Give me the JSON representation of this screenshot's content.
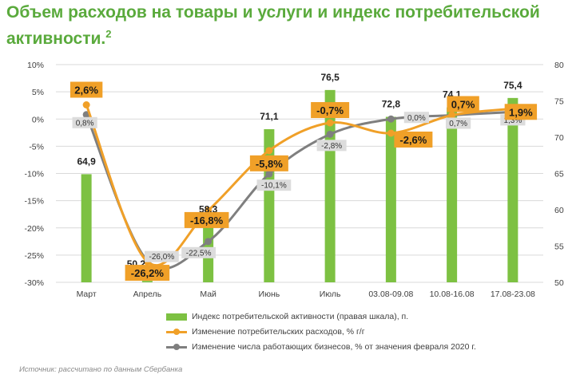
{
  "title": {
    "text": "Объем расходов на товары и услуги и индекс потребительской активности.",
    "sup": "2"
  },
  "chart_data": {
    "type": "bar",
    "categories": [
      "Март",
      "Апрель",
      "Май",
      "Июнь",
      "Июль",
      "03.08-09.08",
      "10.08-16.08",
      "17.08-23.08"
    ],
    "y_left": {
      "ticks": [
        "10%",
        "5%",
        "0%",
        "-5%",
        "-10%",
        "-15%",
        "-20%",
        "-25%",
        "-30%"
      ],
      "range": [
        -30,
        10
      ]
    },
    "y_right": {
      "ticks": [
        "80",
        "75",
        "70",
        "65",
        "60",
        "55",
        "50"
      ],
      "range": [
        50,
        80
      ]
    },
    "grid": true,
    "series": [
      {
        "name": "Индекс потребительской активности (правая шкала), п.",
        "kind": "bar",
        "axis": "right",
        "color": "#7dc142",
        "values": [
          64.9,
          50.2,
          58.3,
          71.1,
          76.5,
          72.8,
          74.1,
          75.4
        ],
        "labels": [
          "64,9",
          "50,2",
          "58,3",
          "71,1",
          "76,5",
          "72,8",
          "74,1",
          "75,4"
        ]
      },
      {
        "name": "Изменение потребительских расходов, % г/г",
        "kind": "line",
        "axis": "left",
        "color": "#f0a028",
        "values": [
          2.6,
          -26.2,
          -16.8,
          -5.8,
          -0.7,
          -2.6,
          0.7,
          1.9
        ],
        "labels": [
          "2,6%",
          "-26,2%",
          "-16,8%",
          "-5,8%",
          "-0,7%",
          "-2,6%",
          "0,7%",
          "1,9%"
        ]
      },
      {
        "name": "Изменение числа работающих бизнесов, % от значения февраля 2020 г.",
        "kind": "line",
        "axis": "left",
        "color": "#7f7f7f",
        "values": [
          0.8,
          -26.0,
          -22.5,
          -10.1,
          -2.8,
          0.0,
          0.7,
          1.3
        ],
        "labels": [
          "0,8%",
          "-26,0%",
          "-22,5%",
          "-10,1%",
          "-2,8%",
          "0,0%",
          "0,7%",
          "1,3%"
        ]
      }
    ],
    "legend_placement": "bottom"
  },
  "source": "Источник: рассчитано по данным Сбербанка"
}
